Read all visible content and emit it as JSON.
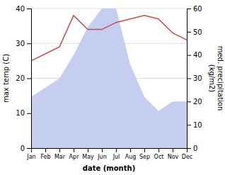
{
  "chart_data": {
    "type": "line",
    "xlabel": "date (month)",
    "ylabel": "max temp (C)",
    "y2label": "med. precipitation\n(kg/m2)",
    "categories": [
      "Jan",
      "Feb",
      "Mar",
      "Apr",
      "May",
      "Jun",
      "Jul",
      "Aug",
      "Sep",
      "Oct",
      "Nov",
      "Dec"
    ],
    "series": [
      {
        "type": "area",
        "axis": "y2",
        "color": "#c5cef0",
        "values": [
          22,
          26,
          30,
          40,
          52,
          60,
          60,
          36,
          22,
          16,
          20,
          20
        ]
      },
      {
        "type": "line",
        "color": "#c0504d",
        "values": [
          25,
          27,
          29,
          38,
          34,
          34,
          36,
          37,
          38,
          37,
          33,
          31
        ]
      }
    ],
    "ylim": [
      0,
      40
    ],
    "yticks": [
      0,
      10,
      20,
      30,
      40
    ],
    "y2lim": [
      0,
      60
    ],
    "y2ticks": [
      0,
      10,
      20,
      30,
      40,
      50,
      60
    ],
    "grid": true
  }
}
